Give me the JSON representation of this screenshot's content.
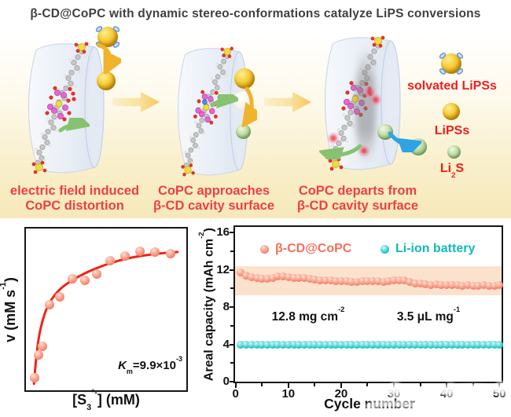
{
  "title": "β-CD@CoPC with dynamic stereo-conformations catalyze LiPS conversions",
  "schematic": {
    "captions": [
      {
        "line1": "electric field induced",
        "line2": "CoPC distortion"
      },
      {
        "line1": "CoPC approaches",
        "line2": "β-CD cavity surface"
      },
      {
        "line1": "CoPC departs from",
        "line2": "β-CD cavity surface"
      }
    ],
    "legend_items": [
      {
        "label": "solvated LiPSs"
      },
      {
        "label": "LiPSs"
      },
      {
        "label_pre": "Li",
        "label_sub": "2",
        "label_post": "S"
      }
    ],
    "colors": {
      "caption_red": "#ee4043",
      "legend_red": "#f21d1d",
      "gold_sphere": "#f6cf3a",
      "green_sphere": "#8fb573",
      "big_arrow_yellow": "#f5c85c",
      "curved_arrow_green": "#86c270",
      "curved_arrow_yellow": "#f0b32c",
      "curved_arrow_blue": "#2ea4e2",
      "band_background_bottom": "#f6e8ba"
    }
  },
  "charts": {
    "kinetics": {
      "ylabel_pre": "v (mM s",
      "ylabel_sup": "-1",
      "ylabel_post": ")",
      "xlabel_pre": "[S",
      "xlabel_sub": "3",
      "xlabel_sup": "*-",
      "xlabel_post": "] (mM)",
      "km_italic": "K",
      "km_sub": "m",
      "km_mid": "=9.9×10",
      "km_sup": "-3"
    },
    "cycling": {
      "ylabel_pre": "Areal capacity (mAh cm",
      "ylabel_sup": "-2",
      "ylabel_post": ")",
      "xlabel": "Cycle number",
      "ann1_pre": "12.8 mg cm",
      "ann1_sup": "-2",
      "ann2_pre": "3.5 μL mg",
      "ann2_sup": "-1"
    }
  },
  "chart_data": [
    {
      "id": "polysulfide-kinetics",
      "type": "scatter",
      "xlabel": "[S3*-] (mM)",
      "ylabel": "v (mM s-1)",
      "annotation": "Km=9.9×10-3",
      "axis_tick_labels_shown": false,
      "point_color": "#f5836c",
      "curve_color": "#ee2418",
      "points_frac": [
        [
          0.056,
          0.08
        ],
        [
          0.076,
          0.22
        ],
        [
          0.103,
          0.27
        ],
        [
          0.146,
          0.53
        ],
        [
          0.21,
          0.58
        ],
        [
          0.287,
          0.69
        ],
        [
          0.366,
          0.68
        ],
        [
          0.441,
          0.72
        ],
        [
          0.525,
          0.8
        ],
        [
          0.618,
          0.83
        ],
        [
          0.713,
          0.86
        ],
        [
          0.804,
          0.855
        ],
        [
          0.9,
          0.845
        ]
      ],
      "curve_frac": [
        [
          0.05,
          0.04
        ],
        [
          0.058,
          0.14
        ],
        [
          0.068,
          0.24
        ],
        [
          0.082,
          0.34
        ],
        [
          0.1,
          0.42
        ],
        [
          0.125,
          0.5
        ],
        [
          0.16,
          0.565
        ],
        [
          0.21,
          0.625
        ],
        [
          0.27,
          0.67
        ],
        [
          0.34,
          0.71
        ],
        [
          0.43,
          0.752
        ],
        [
          0.53,
          0.788
        ],
        [
          0.64,
          0.818
        ],
        [
          0.76,
          0.838
        ],
        [
          0.88,
          0.85
        ],
        [
          0.945,
          0.855
        ]
      ]
    },
    {
      "id": "cycling-stability",
      "type": "scatter",
      "xlabel": "Cycle number",
      "ylabel": "Areal capacity (mAh cm-2)",
      "xlim": [
        0,
        50
      ],
      "ylim": [
        0,
        16.6
      ],
      "xticks": [
        0,
        10,
        20,
        30,
        40,
        50
      ],
      "xticks_minor": [
        5,
        15,
        25,
        35,
        45
      ],
      "yticks": [
        0,
        4,
        8,
        12,
        16
      ],
      "yticks_minor": [
        2,
        6,
        10,
        14
      ],
      "band": {
        "ymin": 9.3,
        "ymax": 12.4,
        "color": "#fbe2cd"
      },
      "series": [
        {
          "name": "β-CD@CoPC",
          "color": "#f5836c",
          "label_color": "#f4705c",
          "x_start": 1,
          "y": [
            11.7,
            11.35,
            11.2,
            11.1,
            11.05,
            11.0,
            11.15,
            11.3,
            11.25,
            11.2,
            11.15,
            11.1,
            11.1,
            11.05,
            10.95,
            10.9,
            10.9,
            10.85,
            10.8,
            10.8,
            10.75,
            10.7,
            10.7,
            10.75,
            10.8,
            10.75,
            10.75,
            10.7,
            10.75,
            10.85,
            10.9,
            10.85,
            10.7,
            10.55,
            10.5,
            10.45,
            10.4,
            10.45,
            10.4,
            10.35,
            10.4,
            10.35,
            10.3,
            10.35,
            10.3,
            10.3,
            10.35,
            10.3,
            10.3,
            10.35
          ]
        },
        {
          "name": "Li-ion battery",
          "color": "#27c5c6",
          "label_color": "#12b9bd",
          "x_start": 1,
          "y_constant": 4.0,
          "count": 50
        }
      ],
      "annotations": [
        "12.8 mg cm-2",
        "3.5 μL mg-1"
      ]
    }
  ]
}
